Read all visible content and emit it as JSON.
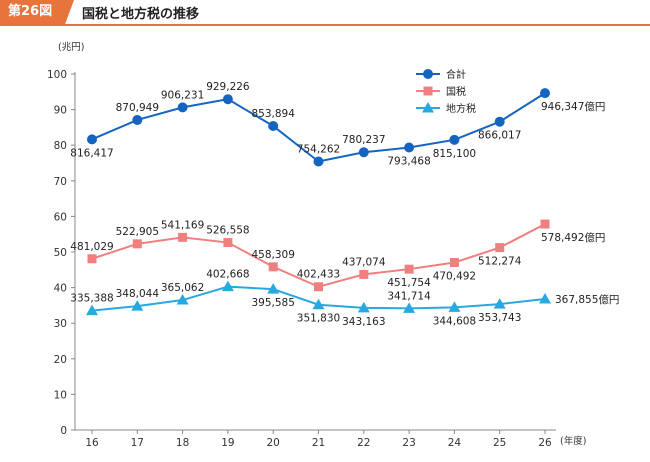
{
  "header": {
    "figure_number": "第26図",
    "title": "国税と地方税の推移"
  },
  "colors": {
    "accent": "#e8743b",
    "total": "#1565c0",
    "national": "#f08080",
    "local": "#29a8e0",
    "axis": "#888888"
  },
  "chart_data": {
    "type": "line",
    "title": "国税と地方税の推移",
    "ylabel": "(兆円)",
    "xlabel": "(年度)",
    "ylim": [
      0,
      100
    ],
    "yticks": [
      0,
      10,
      20,
      30,
      40,
      50,
      60,
      70,
      80,
      90,
      100
    ],
    "categories": [
      "16",
      "17",
      "18",
      "19",
      "20",
      "21",
      "22",
      "23",
      "24",
      "25",
      "26"
    ],
    "grid": false,
    "legend_position": "top-right",
    "series": [
      {
        "name": "合計",
        "color": "#1565c0",
        "marker": "circle",
        "values": [
          81.6417,
          87.0949,
          90.6231,
          92.9226,
          85.3894,
          75.4262,
          78.0237,
          79.3468,
          81.51,
          86.6017,
          94.6347
        ],
        "labels": [
          "816,417",
          "870,949",
          "906,231",
          "929,226",
          "853,894",
          "754,262",
          "780,237",
          "793,468",
          "815,100",
          "866,017",
          "946,347億円"
        ],
        "label_pos": [
          "below",
          "above",
          "above",
          "above",
          "above",
          "above",
          "above",
          "below",
          "below",
          "below",
          "below"
        ]
      },
      {
        "name": "国税",
        "color": "#f08080",
        "marker": "square",
        "values": [
          48.1029,
          52.2905,
          54.1169,
          52.6558,
          45.8309,
          40.2433,
          43.7074,
          45.1754,
          47.0492,
          51.2274,
          57.8492
        ],
        "labels": [
          "481,029",
          "522,905",
          "541,169",
          "526,558",
          "458,309",
          "402,433",
          "437,074",
          "451,754",
          "470,492",
          "512,274",
          "578,492億円"
        ],
        "label_pos": [
          "above",
          "above",
          "above",
          "above",
          "above",
          "above",
          "above",
          "below",
          "below",
          "below",
          "below"
        ]
      },
      {
        "name": "地方税",
        "color": "#29a8e0",
        "marker": "triangle",
        "values": [
          33.5388,
          34.8044,
          36.5062,
          40.2668,
          39.5585,
          35.183,
          34.3163,
          34.1714,
          34.4608,
          35.3743,
          36.7855
        ],
        "labels": [
          "335,388",
          "348,044",
          "365,062",
          "402,668",
          "395,585",
          "351,830",
          "343,163",
          "341,714",
          "344,608",
          "353,743",
          "367,855億円"
        ],
        "label_pos": [
          "above",
          "above",
          "above",
          "above",
          "below",
          "below",
          "below",
          "above",
          "below",
          "below",
          "right"
        ]
      }
    ]
  }
}
